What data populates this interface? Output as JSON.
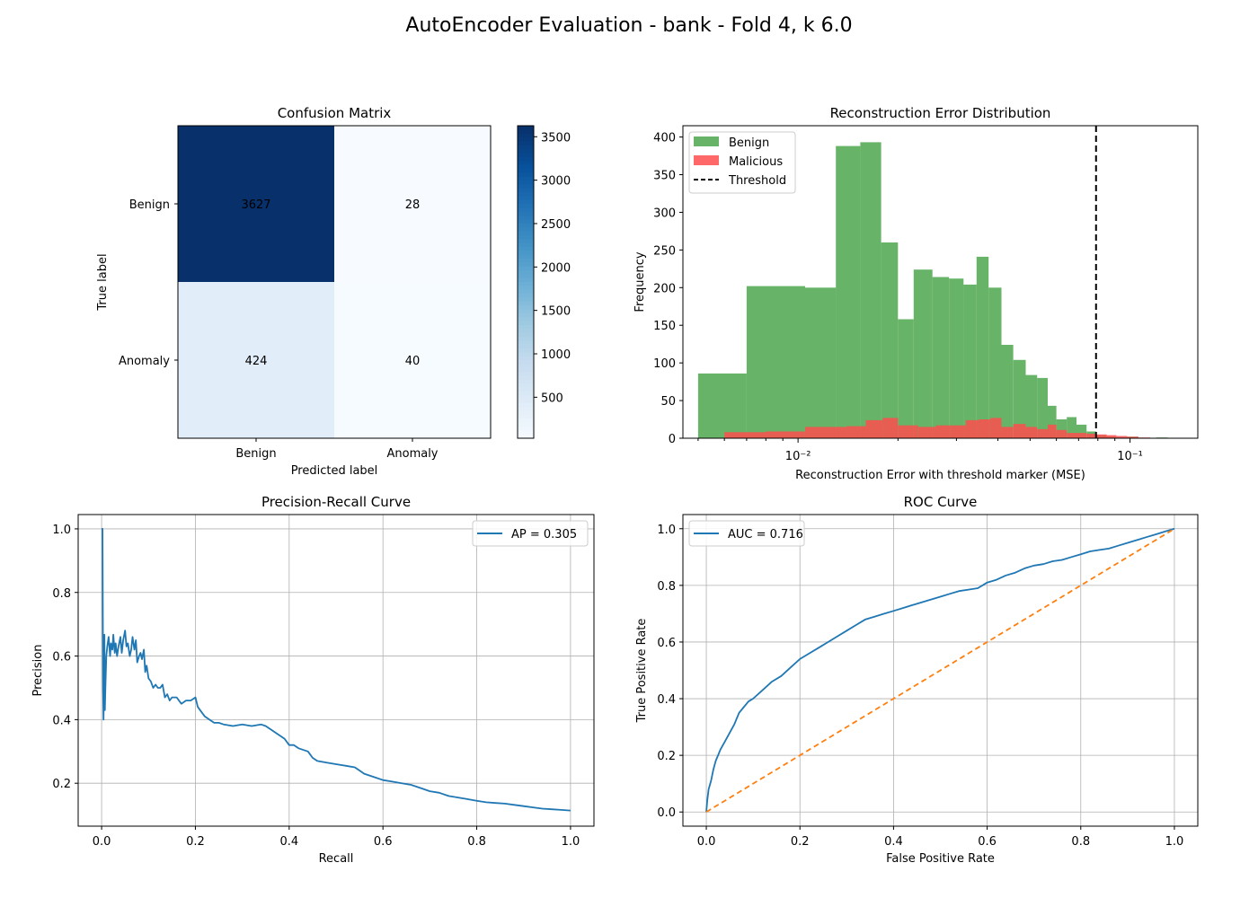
{
  "suptitle": "AutoEncoder Evaluation - bank - Fold 4, k 6.0",
  "chart_data": [
    {
      "type": "heatmap",
      "title": "Confusion Matrix",
      "xlabel": "Predicted label",
      "ylabel": "True label",
      "x_categories": [
        "Benign",
        "Anomaly"
      ],
      "y_categories": [
        "Benign",
        "Anomaly"
      ],
      "matrix": [
        [
          3627,
          28
        ],
        [
          424,
          40
        ]
      ],
      "colormap": "Blues",
      "colorbar_ticks": [
        500,
        1000,
        1500,
        2000,
        2500,
        3000,
        3500
      ],
      "colorbar_range": [
        28,
        3627
      ]
    },
    {
      "type": "bar",
      "title": "Reconstruction Error Distribution",
      "xlabel": "Reconstruction Error with threshold marker (MSE)",
      "ylabel": "Frequency",
      "x_scale": "log",
      "xlim": [
        0.0045,
        0.16
      ],
      "ylim": [
        0,
        415
      ],
      "x_tick_labels": [
        "10⁻²",
        "10⁻¹"
      ],
      "y_ticks": [
        0,
        50,
        100,
        150,
        200,
        250,
        300,
        350,
        400
      ],
      "threshold": 0.079,
      "legend_position": "upper-left",
      "series": [
        {
          "name": "Benign",
          "color": "#4ca64c",
          "bins": [
            [
              0.005,
              0.007,
              86
            ],
            [
              0.007,
              0.0105,
              202
            ],
            [
              0.0105,
              0.013,
              200
            ],
            [
              0.013,
              0.0154,
              388
            ],
            [
              0.0154,
              0.0178,
              393
            ],
            [
              0.0178,
              0.02,
              260
            ],
            [
              0.02,
              0.0223,
              158
            ],
            [
              0.0223,
              0.0254,
              224
            ],
            [
              0.0254,
              0.0285,
              214
            ],
            [
              0.0285,
              0.0315,
              212
            ],
            [
              0.0315,
              0.0345,
              204
            ],
            [
              0.0345,
              0.0375,
              241
            ],
            [
              0.0375,
              0.041,
              200
            ],
            [
              0.041,
              0.0445,
              124
            ],
            [
              0.0445,
              0.0485,
              104
            ],
            [
              0.0485,
              0.0525,
              84
            ],
            [
              0.0525,
              0.0565,
              80
            ],
            [
              0.0565,
              0.06,
              43
            ],
            [
              0.06,
              0.0645,
              25
            ],
            [
              0.0645,
              0.069,
              28
            ],
            [
              0.069,
              0.074,
              18
            ],
            [
              0.074,
              0.079,
              9
            ],
            [
              0.079,
              0.085,
              4
            ],
            [
              0.085,
              0.091,
              2
            ],
            [
              0.091,
              0.098,
              1
            ],
            [
              0.098,
              0.106,
              2
            ],
            [
              0.12,
              0.13,
              1
            ]
          ]
        },
        {
          "name": "Malicious",
          "color": "#ff4d4d",
          "bins": [
            [
              0.006,
              0.008,
              8
            ],
            [
              0.008,
              0.0105,
              9
            ],
            [
              0.0105,
              0.014,
              15
            ],
            [
              0.014,
              0.016,
              16
            ],
            [
              0.016,
              0.018,
              24
            ],
            [
              0.018,
              0.02,
              27
            ],
            [
              0.02,
              0.023,
              17
            ],
            [
              0.023,
              0.026,
              15
            ],
            [
              0.026,
              0.029,
              17
            ],
            [
              0.029,
              0.032,
              17
            ],
            [
              0.032,
              0.035,
              24
            ],
            [
              0.035,
              0.038,
              25
            ],
            [
              0.038,
              0.041,
              27
            ],
            [
              0.041,
              0.0445,
              15
            ],
            [
              0.0445,
              0.0485,
              19
            ],
            [
              0.0485,
              0.0525,
              15
            ],
            [
              0.0525,
              0.0565,
              12
            ],
            [
              0.0565,
              0.06,
              18
            ],
            [
              0.06,
              0.0645,
              11
            ],
            [
              0.0645,
              0.069,
              7
            ],
            [
              0.069,
              0.074,
              7
            ],
            [
              0.074,
              0.079,
              6
            ],
            [
              0.079,
              0.085,
              5
            ],
            [
              0.085,
              0.091,
              4
            ],
            [
              0.091,
              0.098,
              3
            ],
            [
              0.098,
              0.106,
              2
            ],
            [
              0.106,
              0.115,
              1
            ]
          ]
        }
      ],
      "threshold_label": "Threshold"
    },
    {
      "type": "line",
      "title": "Precision-Recall Curve",
      "xlabel": "Recall",
      "ylabel": "Precision",
      "xlim": [
        -0.05,
        1.05
      ],
      "ylim": [
        0.065,
        1.045
      ],
      "x_ticks": [
        0.0,
        0.2,
        0.4,
        0.6,
        0.8,
        1.0
      ],
      "y_ticks": [
        0.2,
        0.4,
        0.6,
        0.8,
        1.0
      ],
      "grid": true,
      "legend_position": "upper-right",
      "series": [
        {
          "name": "AP = 0.305",
          "color": "#1f77b4",
          "x": [
            0.0,
            0.002,
            0.003,
            0.004,
            0.005,
            0.006,
            0.007,
            0.008,
            0.01,
            0.012,
            0.015,
            0.018,
            0.02,
            0.023,
            0.025,
            0.028,
            0.03,
            0.033,
            0.036,
            0.04,
            0.043,
            0.046,
            0.05,
            0.053,
            0.056,
            0.06,
            0.063,
            0.066,
            0.07,
            0.073,
            0.076,
            0.08,
            0.083,
            0.086,
            0.09,
            0.093,
            0.096,
            0.1,
            0.105,
            0.11,
            0.115,
            0.12,
            0.125,
            0.13,
            0.135,
            0.14,
            0.145,
            0.15,
            0.16,
            0.17,
            0.18,
            0.19,
            0.2,
            0.205,
            0.21,
            0.22,
            0.23,
            0.24,
            0.25,
            0.26,
            0.28,
            0.3,
            0.32,
            0.34,
            0.35,
            0.36,
            0.38,
            0.39,
            0.4,
            0.41,
            0.42,
            0.44,
            0.45,
            0.46,
            0.48,
            0.5,
            0.52,
            0.54,
            0.55,
            0.56,
            0.58,
            0.6,
            0.62,
            0.64,
            0.66,
            0.68,
            0.7,
            0.72,
            0.74,
            0.76,
            0.78,
            0.8,
            0.82,
            0.84,
            0.86,
            0.88,
            0.9,
            0.92,
            0.94,
            0.96,
            0.98,
            1.0
          ],
          "y": [
            1.0,
            1.0,
            0.5,
            0.4,
            0.5,
            0.667,
            0.43,
            0.5,
            0.6,
            0.63,
            0.66,
            0.6,
            0.64,
            0.62,
            0.667,
            0.61,
            0.64,
            0.6,
            0.63,
            0.66,
            0.61,
            0.65,
            0.68,
            0.63,
            0.64,
            0.6,
            0.62,
            0.66,
            0.62,
            0.65,
            0.58,
            0.6,
            0.61,
            0.59,
            0.62,
            0.55,
            0.57,
            0.53,
            0.52,
            0.5,
            0.51,
            0.5,
            0.5,
            0.51,
            0.47,
            0.48,
            0.46,
            0.47,
            0.47,
            0.45,
            0.46,
            0.46,
            0.47,
            0.44,
            0.43,
            0.41,
            0.4,
            0.39,
            0.39,
            0.385,
            0.38,
            0.385,
            0.38,
            0.385,
            0.38,
            0.37,
            0.35,
            0.34,
            0.32,
            0.32,
            0.31,
            0.3,
            0.28,
            0.27,
            0.265,
            0.26,
            0.255,
            0.25,
            0.24,
            0.23,
            0.22,
            0.21,
            0.205,
            0.2,
            0.195,
            0.185,
            0.175,
            0.17,
            0.16,
            0.155,
            0.15,
            0.145,
            0.14,
            0.138,
            0.136,
            0.132,
            0.128,
            0.124,
            0.12,
            0.118,
            0.116,
            0.114
          ]
        }
      ]
    },
    {
      "type": "line",
      "title": "ROC Curve",
      "xlabel": "False Positive Rate",
      "ylabel": "True Positive Rate",
      "xlim": [
        -0.05,
        1.05
      ],
      "ylim": [
        -0.05,
        1.05
      ],
      "x_ticks": [
        0.0,
        0.2,
        0.4,
        0.6,
        0.8,
        1.0
      ],
      "y_ticks": [
        0.0,
        0.2,
        0.4,
        0.6,
        0.8,
        1.0
      ],
      "grid": true,
      "legend_position": "upper-left",
      "series": [
        {
          "name": "AUC = 0.716",
          "color": "#1f77b4",
          "x": [
            0.0,
            0.002,
            0.005,
            0.01,
            0.015,
            0.02,
            0.025,
            0.03,
            0.04,
            0.05,
            0.06,
            0.07,
            0.08,
            0.09,
            0.1,
            0.12,
            0.14,
            0.16,
            0.18,
            0.2,
            0.22,
            0.24,
            0.26,
            0.28,
            0.3,
            0.32,
            0.34,
            0.36,
            0.38,
            0.4,
            0.42,
            0.44,
            0.46,
            0.48,
            0.5,
            0.52,
            0.54,
            0.56,
            0.58,
            0.6,
            0.62,
            0.64,
            0.66,
            0.68,
            0.7,
            0.72,
            0.74,
            0.76,
            0.78,
            0.8,
            0.82,
            0.84,
            0.86,
            0.88,
            0.9,
            0.92,
            0.94,
            0.96,
            0.98,
            1.0
          ],
          "y": [
            0.0,
            0.04,
            0.08,
            0.11,
            0.15,
            0.18,
            0.2,
            0.22,
            0.25,
            0.28,
            0.31,
            0.35,
            0.37,
            0.39,
            0.4,
            0.43,
            0.46,
            0.48,
            0.51,
            0.54,
            0.56,
            0.58,
            0.6,
            0.62,
            0.64,
            0.66,
            0.68,
            0.69,
            0.7,
            0.71,
            0.72,
            0.73,
            0.74,
            0.75,
            0.76,
            0.77,
            0.78,
            0.785,
            0.79,
            0.81,
            0.82,
            0.835,
            0.845,
            0.86,
            0.87,
            0.875,
            0.885,
            0.89,
            0.9,
            0.91,
            0.92,
            0.925,
            0.93,
            0.94,
            0.95,
            0.96,
            0.97,
            0.98,
            0.99,
            1.0
          ]
        },
        {
          "name": "",
          "color": "#ff7f0e",
          "dashed": true,
          "x": [
            0,
            1
          ],
          "y": [
            0,
            1
          ]
        }
      ]
    }
  ]
}
